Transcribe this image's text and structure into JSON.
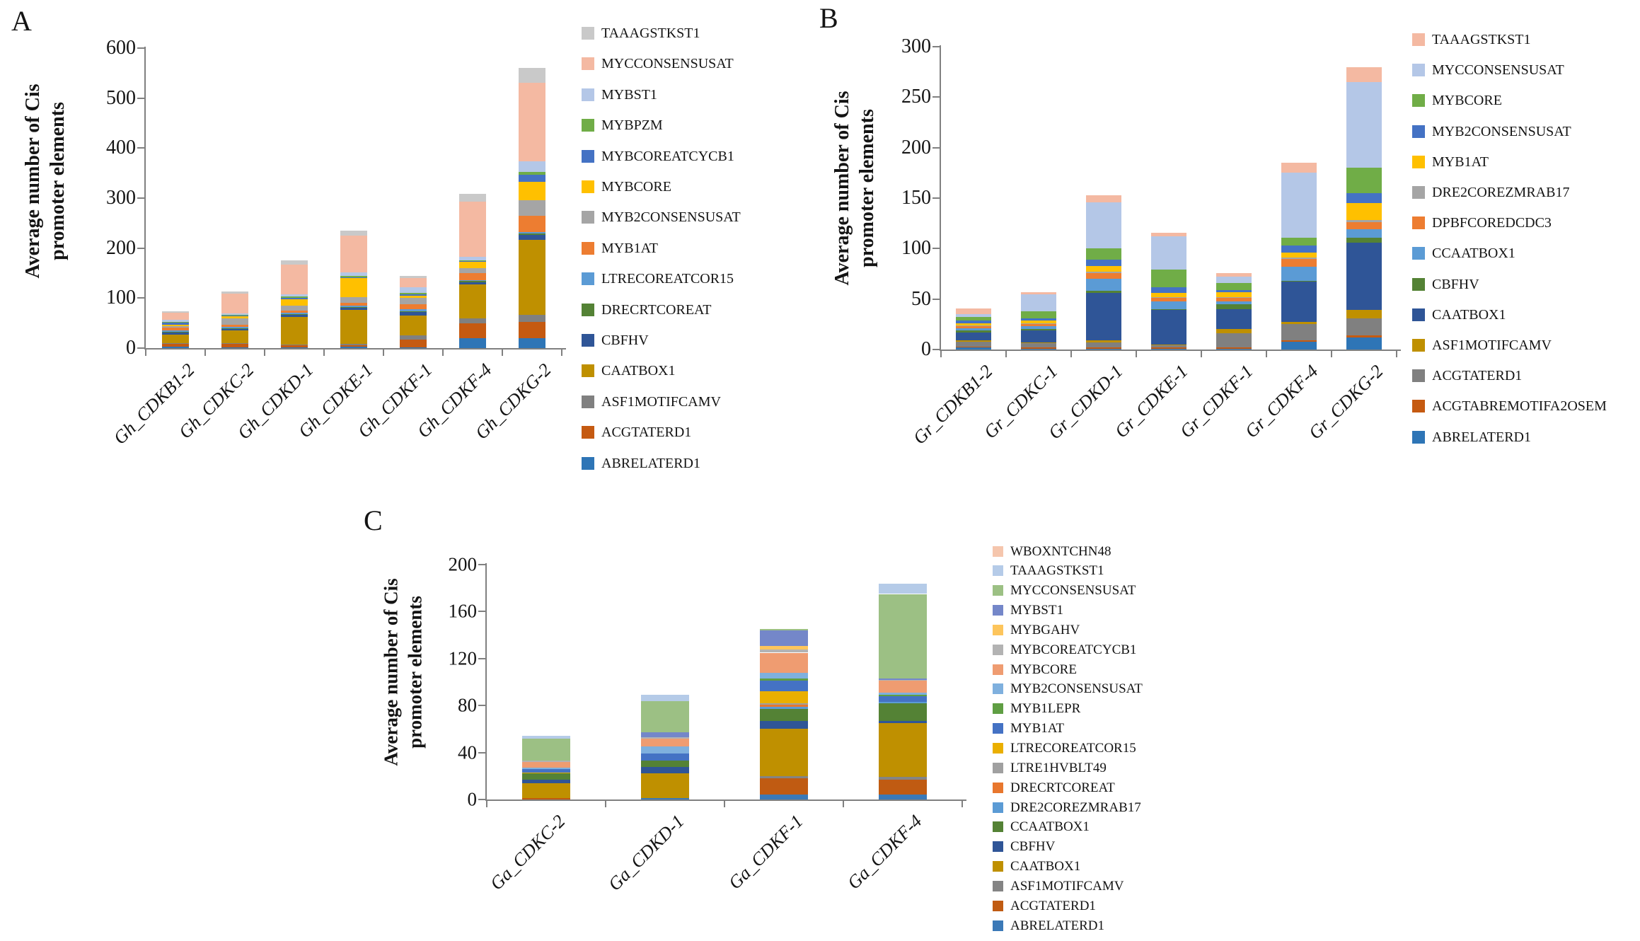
{
  "figure": {
    "background": "#ffffff",
    "axis_color": "#808080",
    "text_color": "#141414"
  },
  "chart_data": {
    "type": "stacked-bar",
    "description": "Average number of cis promoter elements in CDK genes of three cotton species (Gh, Gr, Ga)",
    "panels": [
      {
        "label": "A",
        "ylabel_line1": "Average number of Cis",
        "ylabel_line2": "promoter elements",
        "y_min": 0,
        "y_max": 600,
        "y_ticks": [
          0,
          100,
          200,
          300,
          400,
          500,
          600
        ],
        "grid": false,
        "legend_position": "right",
        "categories": [
          "Gh_CDKB1-2",
          "Gh_CDKC-2",
          "Gh_CDKD-1",
          "Gh_CDKE-1",
          "Gh_CDKF-1",
          "Gh_CDKF-4",
          "Gh_CDKG-2"
        ],
        "series": [
          {
            "name": "TAAAGSTKST1",
            "color": "#c9c9c9",
            "values": [
              2,
              4,
              8,
              10,
              4,
              15,
              30
            ]
          },
          {
            "name": "MYCCONSENSUSAT",
            "color": "#f4b9a2",
            "values": [
              14,
              40,
              60,
              73,
              18,
              110,
              157
            ]
          },
          {
            "name": "MYBST1",
            "color": "#b4c7e7",
            "values": [
              4,
              3,
              4,
              8,
              12,
              7,
              20
            ]
          },
          {
            "name": "MYBPZM",
            "color": "#70ad47",
            "values": [
              1,
              1,
              3,
              2,
              2,
              2,
              7
            ]
          },
          {
            "name": "MYBCOREATCYCB1",
            "color": "#4472c4",
            "values": [
              5,
              2,
              3,
              2,
              3,
              2,
              13
            ]
          },
          {
            "name": "MYBCORE",
            "color": "#ffc000",
            "values": [
              3,
              4,
              12,
              38,
              5,
              12,
              37
            ]
          },
          {
            "name": "MYB2CONSENSUSAT",
            "color": "#a5a5a5",
            "values": [
              3,
              12,
              10,
              12,
              12,
              10,
              32
            ]
          },
          {
            "name": "MYB1AT",
            "color": "#ed7d31",
            "values": [
              5,
              5,
              4,
              5,
              10,
              14,
              32
            ]
          },
          {
            "name": "LTRECOREATCOR15",
            "color": "#5b9bd5",
            "values": [
              3,
              2,
              3,
              3,
              4,
              2,
              3
            ]
          },
          {
            "name": "DRECRTCOREAT",
            "color": "#548235",
            "values": [
              1,
              1,
              2,
              2,
              2,
              2,
              3
            ]
          },
          {
            "name": "CBFHV",
            "color": "#2f5597",
            "values": [
              5,
              4,
              4,
              4,
              7,
              4,
              10
            ]
          },
          {
            "name": "CAATBOX1",
            "color": "#bf9000",
            "values": [
              17,
              25,
              55,
              68,
              40,
              68,
              150
            ]
          },
          {
            "name": "ASF1MOTIFCAMV",
            "color": "#808080",
            "values": [
              2,
              2,
              2,
              2,
              8,
              10,
              14
            ]
          },
          {
            "name": "ACGTATERD1",
            "color": "#c55a11",
            "values": [
              5,
              6,
              3,
              3,
              15,
              30,
              32
            ]
          },
          {
            "name": "ABRELATERD1",
            "color": "#2e75b6",
            "values": [
              3,
              2,
              2,
              3,
              2,
              20,
              20
            ]
          }
        ]
      },
      {
        "label": "B",
        "ylabel_line1": "Average number of Cis",
        "ylabel_line2": "promoter elements",
        "y_min": 0,
        "y_max": 300,
        "y_ticks": [
          0,
          50,
          100,
          150,
          200,
          250,
          300
        ],
        "grid": false,
        "legend_position": "right",
        "categories": [
          "Gr_CDKB1-2",
          "Gr_CDKC-1",
          "Gr_CDKD-1",
          "Gr_CDKE-1",
          "Gr_CDKF-1",
          "Gr_CDKF-4",
          "Gr_CDKG-2"
        ],
        "series": [
          {
            "name": "TAAAGSTKST1",
            "color": "#f4b9a2",
            "values": [
              6,
              2,
              7,
              4,
              4,
              10,
              15
            ]
          },
          {
            "name": "MYCCONSENSUSAT",
            "color": "#b4c7e7",
            "values": [
              3,
              17,
              46,
              33,
              6,
              64,
              85
            ]
          },
          {
            "name": "MYBCORE",
            "color": "#70ad47",
            "values": [
              3,
              7,
              11,
              17,
              7,
              8,
              25
            ]
          },
          {
            "name": "MYB2CONSENSUSAT",
            "color": "#4472c4",
            "values": [
              3,
              2,
              6,
              6,
              2,
              7,
              10
            ]
          },
          {
            "name": "MYB1AT",
            "color": "#ffc000",
            "values": [
              2,
              3,
              6,
              4,
              5,
              5,
              17
            ]
          },
          {
            "name": "DRE2COREZMRAB17",
            "color": "#a5a5a5",
            "values": [
              1,
              1,
              1,
              1,
              1,
              1,
              2
            ]
          },
          {
            "name": "DPBFCOREDCDC3",
            "color": "#ed7d31",
            "values": [
              2,
              2,
              6,
              3,
              3,
              8,
              7
            ]
          },
          {
            "name": "CCAATBOX1",
            "color": "#5b9bd5",
            "values": [
              2,
              3,
              12,
              8,
              3,
              14,
              8
            ]
          },
          {
            "name": "CBFHV",
            "color": "#548235",
            "values": [
              2,
              1,
              2,
              1,
              5,
              1,
              5
            ]
          },
          {
            "name": "CAATBOX1",
            "color": "#2f5597",
            "values": [
              8,
              12,
              47,
              34,
              20,
              40,
              67
            ]
          },
          {
            "name": "ASF1MOTIFCAMV",
            "color": "#bf9000",
            "values": [
              1,
              1,
              2,
              1,
              4,
              2,
              8
            ]
          },
          {
            "name": "ACGTATERD1",
            "color": "#808080",
            "values": [
              5,
              4,
              5,
              2,
              14,
              16,
              17
            ]
          },
          {
            "name": "ACGTABREMOTIFA2OSEM",
            "color": "#c55a11",
            "values": [
              1,
              1,
              1,
              1,
              1,
              1,
              2
            ]
          },
          {
            "name": "ABRELATERD1",
            "color": "#2e75b6",
            "values": [
              2,
              1,
              1,
              1,
              1,
              8,
              12
            ]
          }
        ]
      },
      {
        "label": "C",
        "ylabel_line1": "Average number of Cis",
        "ylabel_line2": "promoter elements",
        "y_min": 0,
        "y_max": 200,
        "y_ticks": [
          0,
          40,
          80,
          120,
          160,
          200
        ],
        "grid": false,
        "legend_position": "right",
        "categories": [
          "Ga_CDKC-2",
          "Ga_CDKD-1",
          "Ga_CDKF-1",
          "Ga_CDKF-4"
        ],
        "series": [
          {
            "name": "WBOXNTCHN48",
            "color": "#f5c6ad",
            "values": [
              0,
              0,
              0,
              0
            ]
          },
          {
            "name": "TAAAGSTKST1",
            "color": "#b5cbe8",
            "values": [
              2,
              5,
              0,
              9
            ]
          },
          {
            "name": "MYCCONSENSUSAT",
            "color": "#9cc084",
            "values": [
              19,
              27,
              1,
              72
            ]
          },
          {
            "name": "MYBST1",
            "color": "#7487c9",
            "values": [
              0,
              4,
              13,
              1
            ]
          },
          {
            "name": "MYBGAHV",
            "color": "#fdc55c",
            "values": [
              0,
              0,
              3,
              0
            ]
          },
          {
            "name": "MYBCOREATCYCB1",
            "color": "#b3b3b3",
            "values": [
              1,
              1,
              3,
              1
            ]
          },
          {
            "name": "MYBCORE",
            "color": "#ef9c71",
            "values": [
              5,
              7,
              17,
              10
            ]
          },
          {
            "name": "MYB2CONSENSUSAT",
            "color": "#7fb0de",
            "values": [
              1,
              6,
              5,
              2
            ]
          },
          {
            "name": "MYB1LEPR",
            "color": "#5f9e43",
            "values": [
              0,
              0,
              2,
              1
            ]
          },
          {
            "name": "MYB1AT",
            "color": "#4472c4",
            "values": [
              3,
              6,
              9,
              5
            ]
          },
          {
            "name": "LTRECOREATCOR15",
            "color": "#eaaf00",
            "values": [
              1,
              0,
              10,
              0
            ]
          },
          {
            "name": "LTRE1HVBLT49",
            "color": "#a0a0a0",
            "values": [
              0,
              0,
              1,
              0
            ]
          },
          {
            "name": "DRECRTCOREAT",
            "color": "#e8772e",
            "values": [
              0,
              0,
              2,
              0
            ]
          },
          {
            "name": "DRE2COREZMRAB17",
            "color": "#5b9bd5",
            "values": [
              0,
              0,
              2,
              1
            ]
          },
          {
            "name": "CCAATBOX1",
            "color": "#548235",
            "values": [
              5,
              5,
              10,
              15
            ]
          },
          {
            "name": "CBFHV",
            "color": "#2f5597",
            "values": [
              3,
              6,
              7,
              2
            ]
          },
          {
            "name": "CAATBOX1",
            "color": "#bf9000",
            "values": [
              13,
              21,
              40,
              46
            ]
          },
          {
            "name": "ASF1MOTIFCAMV",
            "color": "#848484",
            "values": [
              0,
              0,
              2,
              2
            ]
          },
          {
            "name": "ACGTATERD1",
            "color": "#c05b12",
            "values": [
              1,
              0,
              14,
              13
            ]
          },
          {
            "name": "ABRELATERD1",
            "color": "#3b79b7",
            "values": [
              0,
              1,
              4,
              4
            ]
          }
        ]
      }
    ]
  }
}
